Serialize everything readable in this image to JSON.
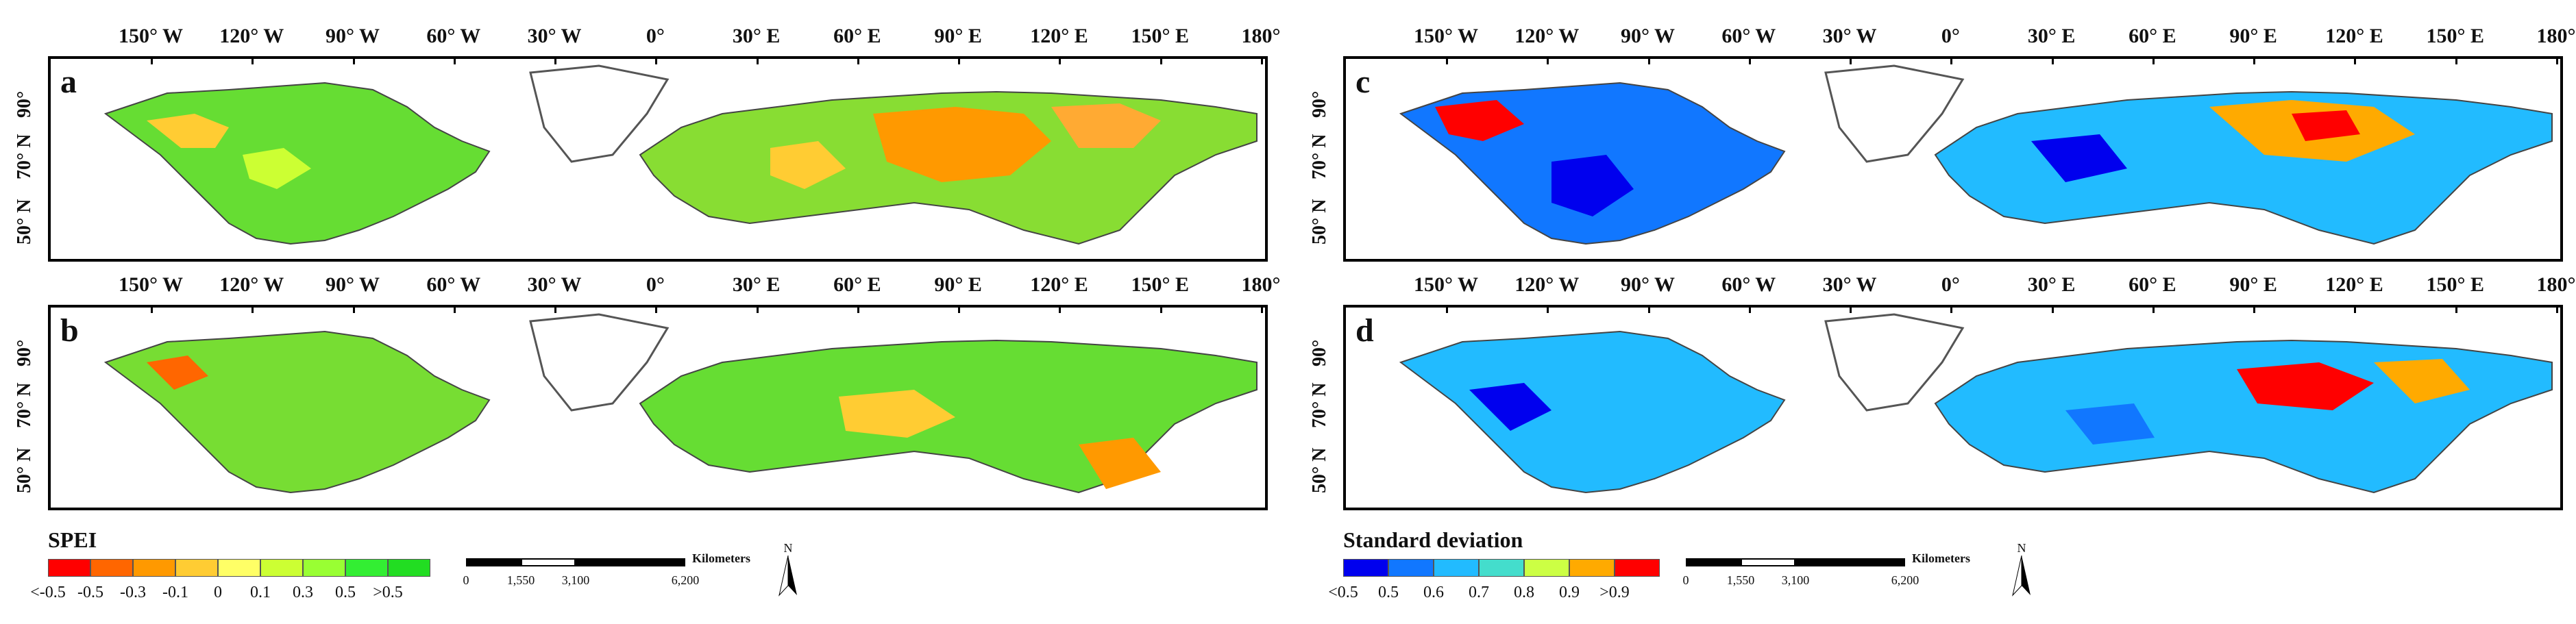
{
  "panels": [
    {
      "id": "a",
      "letter": "a",
      "variable": "SPEI"
    },
    {
      "id": "b",
      "letter": "b",
      "variable": "SPEI"
    },
    {
      "id": "c",
      "letter": "c",
      "variable": "Standard deviation"
    },
    {
      "id": "d",
      "letter": "d",
      "variable": "Standard deviation"
    }
  ],
  "longitude_labels": [
    "150° W",
    "120° W",
    "90° W",
    "60° W",
    "30° W",
    "0°",
    "30° E",
    "60° E",
    "90° E",
    "120° E",
    "150° E",
    "180°"
  ],
  "latitude_labels": [
    "90°",
    "70° N",
    "50° N"
  ],
  "legend_spei": {
    "title": "SPEI",
    "labels": [
      "<-0.5",
      "-0.5",
      "-0.3",
      "-0.1",
      "0",
      "0.1",
      "0.3",
      "0.5",
      ">0.5"
    ],
    "colors": [
      "#ff0000",
      "#ff6600",
      "#ff9900",
      "#ffcc33",
      "#ffff66",
      "#ccff33",
      "#99ff33",
      "#33ee33",
      "#22dd22"
    ]
  },
  "legend_sd": {
    "title": "Standard deviation",
    "labels": [
      "<0.5",
      "0.5",
      "0.6",
      "0.7",
      "0.8",
      "0.9",
      ">0.9"
    ],
    "colors": [
      "#0000ee",
      "#1177ff",
      "#22bbff",
      "#44ddcc",
      "#ccff44",
      "#ffaa00",
      "#ff0000"
    ]
  },
  "scalebar": {
    "labels": [
      "0",
      "1,550",
      "3,100",
      "6,200"
    ],
    "unit": "Kilometers"
  },
  "north_arrow": {
    "label": "N"
  }
}
